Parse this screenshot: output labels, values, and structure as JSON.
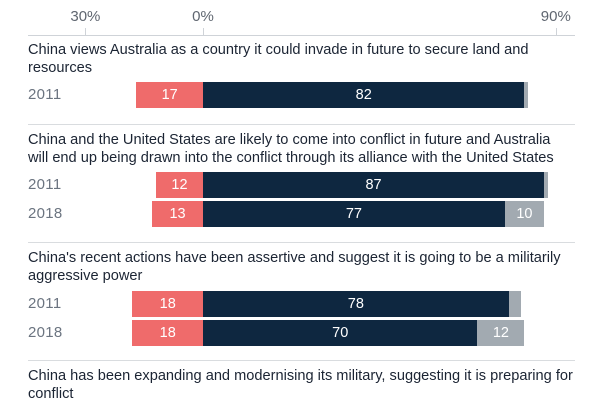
{
  "chart_data": {
    "type": "bar",
    "orientation": "horizontal",
    "stacked": true,
    "axis": {
      "ticks": [
        -30,
        0,
        90
      ],
      "tick_labels": [
        "30%",
        "0%",
        "90%"
      ],
      "xlim": [
        -30,
        90
      ],
      "grid": true
    },
    "colors": {
      "disagree": "#ef6b6b",
      "agree": "#0e2740",
      "neutral": "#a2aab1",
      "grid": "#cfd3d8",
      "separator": "#d9dcdf"
    },
    "questions": [
      {
        "text": "China views Australia as a country it could invade in future to secure land and resources",
        "rows": [
          {
            "year": "2011",
            "disagree": 17,
            "agree": 82,
            "neutral": 1,
            "labels": {
              "disagree": "17",
              "agree": "82",
              "neutral": ""
            }
          }
        ]
      },
      {
        "text": "China and the United States are likely to come into conflict in future and Australia will end up being drawn into the conflict through its alliance with the United States",
        "rows": [
          {
            "year": "2011",
            "disagree": 12,
            "agree": 87,
            "neutral": 1,
            "labels": {
              "disagree": "12",
              "agree": "87",
              "neutral": ""
            }
          },
          {
            "year": "2018",
            "disagree": 13,
            "agree": 77,
            "neutral": 10,
            "labels": {
              "disagree": "13",
              "agree": "77",
              "neutral": "10"
            }
          }
        ]
      },
      {
        "text": "China's recent actions have been assertive and suggest it is going to be a militarily aggressive power",
        "rows": [
          {
            "year": "2011",
            "disagree": 18,
            "agree": 78,
            "neutral": 3,
            "labels": {
              "disagree": "18",
              "agree": "78",
              "neutral": ""
            }
          },
          {
            "year": "2018",
            "disagree": 18,
            "agree": 70,
            "neutral": 12,
            "labels": {
              "disagree": "18",
              "agree": "70",
              "neutral": "12"
            }
          }
        ]
      },
      {
        "text": "China has been expanding and modernising its military, suggesting it is preparing for conflict",
        "rows": []
      }
    ]
  }
}
